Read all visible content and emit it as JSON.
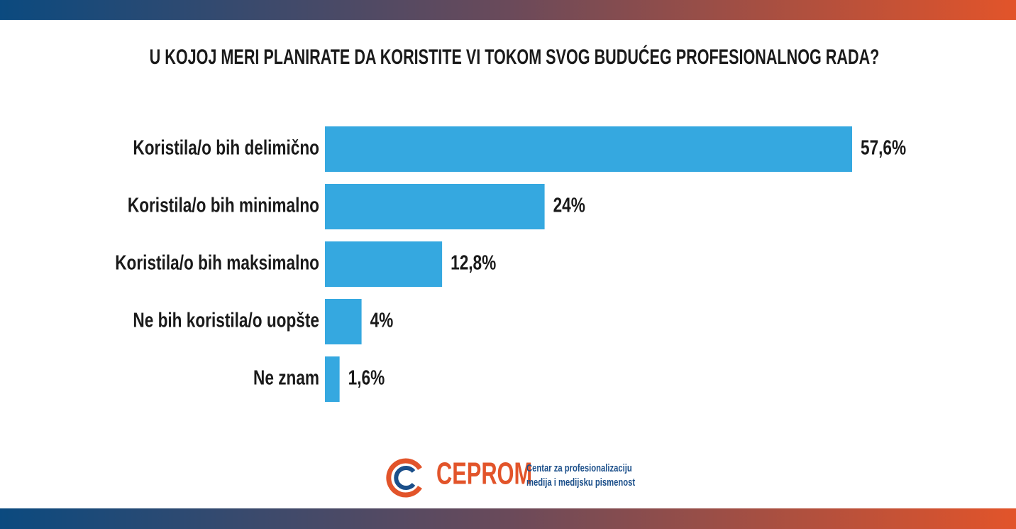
{
  "chart_data": {
    "type": "bar",
    "orientation": "horizontal",
    "title": "U KOJOJ MERI PLANIRATE DA KORISTITE VI TOKOM SVOG BUDUĆEG PROFESIONALNOG RADA?",
    "categories": [
      "Koristila/o bih delimično",
      "Koristila/o bih minimalno",
      "Koristila/o bih maksimalno",
      "Ne bih koristila/o uopšte",
      "Ne znam"
    ],
    "values": [
      57.6,
      24,
      12.8,
      4,
      1.6
    ],
    "value_labels": [
      "57,6%",
      "24%",
      "12,8%",
      "4%",
      "1,6%"
    ],
    "color": "#35a8e0"
  },
  "footer": {
    "logo": "CEPROM",
    "tagline": [
      "Centar za profesionalizaciju",
      "medija i medijsku pismenost"
    ]
  }
}
